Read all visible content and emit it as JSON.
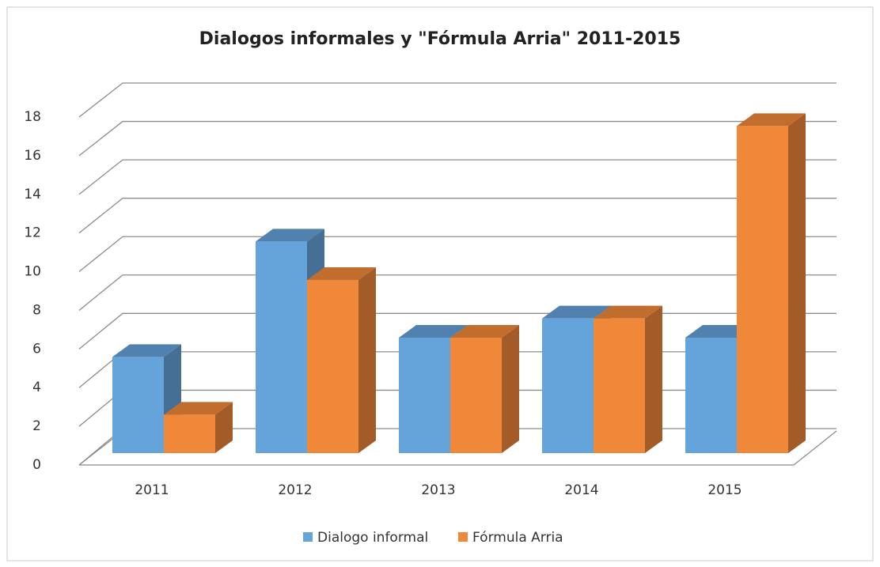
{
  "chart_data": {
    "type": "bar3d",
    "title": "Dialogos informales y \"Fórmula Arria\" 2011-2015",
    "categories": [
      "2011",
      "2012",
      "2013",
      "2014",
      "2015"
    ],
    "series": [
      {
        "name": "Dialogo informal",
        "color": "#65a3db",
        "values": [
          5,
          11,
          6,
          7,
          6
        ]
      },
      {
        "name": "Fórmula Arria",
        "color": "#f0883a",
        "values": [
          2,
          9,
          6,
          7,
          17
        ]
      }
    ],
    "ylim": [
      0,
      18
    ],
    "yticks": [
      0,
      2,
      4,
      6,
      8,
      10,
      12,
      14,
      16,
      18
    ],
    "grid": true,
    "legend": "bottom"
  }
}
